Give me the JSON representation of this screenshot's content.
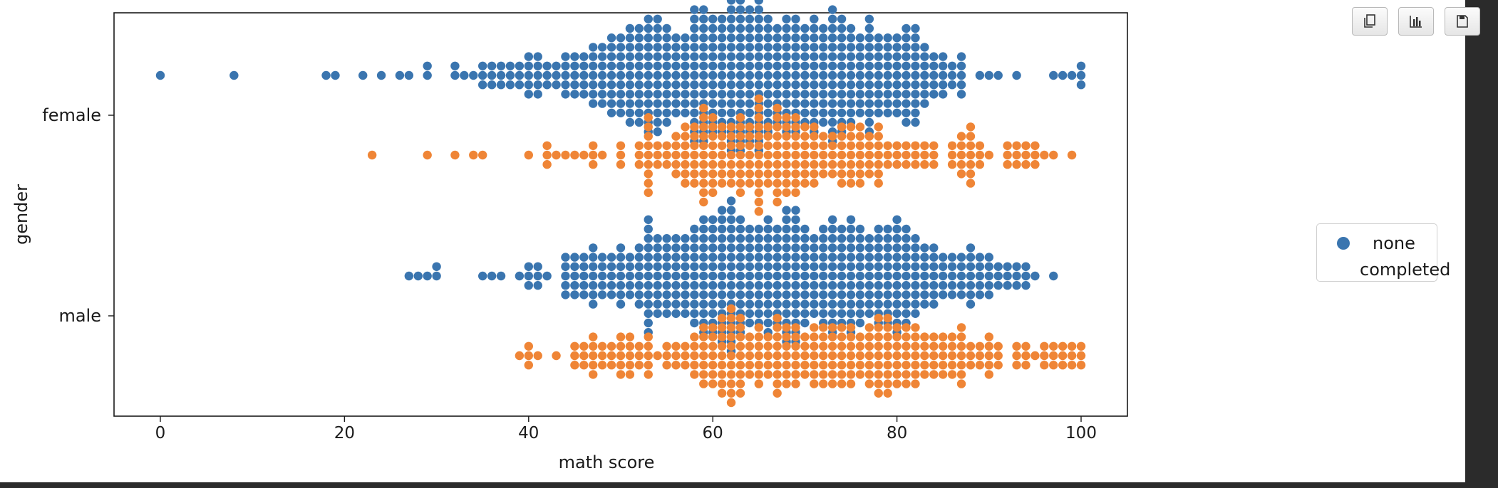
{
  "toolbar": {
    "buttons": [
      {
        "name": "copy-icon"
      },
      {
        "name": "bar-chart-icon"
      },
      {
        "name": "save-icon"
      }
    ]
  },
  "chart_data": {
    "type": "scatter",
    "subtype": "swarm",
    "xlabel": "math score",
    "ylabel": "gender",
    "xlim": [
      -5,
      105
    ],
    "xticks": [
      0,
      20,
      40,
      60,
      80,
      100
    ],
    "categories": [
      "female",
      "male"
    ],
    "grid": false,
    "legend": {
      "placement": "right",
      "entries": [
        "none",
        "completed"
      ]
    },
    "series": [
      {
        "name": "none",
        "color": "#3a75af",
        "data": {
          "female": [
            [
              0,
              1
            ],
            [
              8,
              1
            ],
            [
              18,
              1
            ],
            [
              19,
              1
            ],
            [
              22,
              1
            ],
            [
              24,
              1
            ],
            [
              26,
              1
            ],
            [
              27,
              1
            ],
            [
              29,
              2
            ],
            [
              32,
              2
            ],
            [
              33,
              1
            ],
            [
              34,
              1
            ],
            [
              35,
              3
            ],
            [
              36,
              3
            ],
            [
              37,
              3
            ],
            [
              38,
              3
            ],
            [
              39,
              3
            ],
            [
              40,
              5
            ],
            [
              41,
              5
            ],
            [
              42,
              3
            ],
            [
              43,
              3
            ],
            [
              44,
              5
            ],
            [
              45,
              5
            ],
            [
              46,
              5
            ],
            [
              47,
              7
            ],
            [
              48,
              7
            ],
            [
              49,
              9
            ],
            [
              50,
              9
            ],
            [
              51,
              11
            ],
            [
              52,
              11
            ],
            [
              53,
              13
            ],
            [
              54,
              13
            ],
            [
              55,
              11
            ],
            [
              56,
              9
            ],
            [
              57,
              9
            ],
            [
              58,
              15
            ],
            [
              59,
              15
            ],
            [
              60,
              13
            ],
            [
              61,
              13
            ],
            [
              62,
              17
            ],
            [
              63,
              17
            ],
            [
              64,
              15
            ],
            [
              65,
              17
            ],
            [
              66,
              13
            ],
            [
              67,
              11
            ],
            [
              68,
              13
            ],
            [
              69,
              13
            ],
            [
              70,
              11
            ],
            [
              71,
              13
            ],
            [
              72,
              11
            ],
            [
              73,
              15
            ],
            [
              74,
              13
            ],
            [
              75,
              11
            ],
            [
              76,
              9
            ],
            [
              77,
              13
            ],
            [
              78,
              9
            ],
            [
              79,
              9
            ],
            [
              80,
              9
            ],
            [
              81,
              11
            ],
            [
              82,
              11
            ],
            [
              83,
              7
            ],
            [
              84,
              5
            ],
            [
              85,
              5
            ],
            [
              86,
              3
            ],
            [
              87,
              5
            ],
            [
              89,
              1
            ],
            [
              90,
              1
            ],
            [
              91,
              1
            ],
            [
              93,
              1
            ],
            [
              97,
              1
            ],
            [
              98,
              1
            ],
            [
              99,
              1
            ],
            [
              100,
              3
            ]
          ],
          "male": [
            [
              27,
              1
            ],
            [
              28,
              1
            ],
            [
              29,
              1
            ],
            [
              30,
              2
            ],
            [
              35,
              1
            ],
            [
              36,
              1
            ],
            [
              37,
              1
            ],
            [
              39,
              1
            ],
            [
              40,
              3
            ],
            [
              41,
              3
            ],
            [
              42,
              1
            ],
            [
              44,
              5
            ],
            [
              45,
              5
            ],
            [
              46,
              5
            ],
            [
              47,
              7
            ],
            [
              48,
              5
            ],
            [
              49,
              5
            ],
            [
              50,
              7
            ],
            [
              51,
              5
            ],
            [
              52,
              7
            ],
            [
              53,
              13
            ],
            [
              54,
              9
            ],
            [
              55,
              9
            ],
            [
              56,
              9
            ],
            [
              57,
              9
            ],
            [
              58,
              11
            ],
            [
              59,
              13
            ],
            [
              60,
              13
            ],
            [
              61,
              15
            ],
            [
              62,
              17
            ],
            [
              63,
              13
            ],
            [
              64,
              11
            ],
            [
              65,
              11
            ],
            [
              66,
              13
            ],
            [
              67,
              11
            ],
            [
              68,
              15
            ],
            [
              69,
              15
            ],
            [
              70,
              11
            ],
            [
              71,
              9
            ],
            [
              72,
              11
            ],
            [
              73,
              13
            ],
            [
              74,
              11
            ],
            [
              75,
              13
            ],
            [
              76,
              11
            ],
            [
              77,
              9
            ],
            [
              78,
              11
            ],
            [
              79,
              11
            ],
            [
              80,
              13
            ],
            [
              81,
              11
            ],
            [
              82,
              9
            ],
            [
              83,
              7
            ],
            [
              84,
              7
            ],
            [
              85,
              5
            ],
            [
              86,
              5
            ],
            [
              87,
              5
            ],
            [
              88,
              7
            ],
            [
              89,
              5
            ],
            [
              90,
              5
            ],
            [
              91,
              3
            ],
            [
              92,
              3
            ],
            [
              93,
              3
            ],
            [
              94,
              3
            ],
            [
              95,
              1
            ],
            [
              97,
              1
            ]
          ]
        }
      },
      {
        "name": "completed",
        "color": "#ef8536",
        "data": {
          "female": [
            [
              23,
              1
            ],
            [
              29,
              1
            ],
            [
              32,
              1
            ],
            [
              34,
              1
            ],
            [
              35,
              1
            ],
            [
              40,
              1
            ],
            [
              42,
              3
            ],
            [
              43,
              1
            ],
            [
              44,
              1
            ],
            [
              45,
              1
            ],
            [
              46,
              1
            ],
            [
              47,
              3
            ],
            [
              48,
              1
            ],
            [
              50,
              3
            ],
            [
              52,
              3
            ],
            [
              53,
              9
            ],
            [
              54,
              3
            ],
            [
              55,
              3
            ],
            [
              56,
              5
            ],
            [
              57,
              7
            ],
            [
              58,
              7
            ],
            [
              59,
              11
            ],
            [
              60,
              9
            ],
            [
              61,
              7
            ],
            [
              62,
              7
            ],
            [
              63,
              9
            ],
            [
              64,
              7
            ],
            [
              65,
              13
            ],
            [
              66,
              7
            ],
            [
              67,
              11
            ],
            [
              68,
              9
            ],
            [
              69,
              9
            ],
            [
              70,
              7
            ],
            [
              71,
              7
            ],
            [
              72,
              5
            ],
            [
              73,
              5
            ],
            [
              74,
              7
            ],
            [
              75,
              7
            ],
            [
              76,
              7
            ],
            [
              77,
              5
            ],
            [
              78,
              7
            ],
            [
              79,
              3
            ],
            [
              80,
              3
            ],
            [
              81,
              3
            ],
            [
              82,
              3
            ],
            [
              83,
              3
            ],
            [
              84,
              3
            ],
            [
              86,
              3
            ],
            [
              87,
              5
            ],
            [
              88,
              7
            ],
            [
              89,
              3
            ],
            [
              90,
              1
            ],
            [
              92,
              3
            ],
            [
              93,
              3
            ],
            [
              94,
              3
            ],
            [
              95,
              3
            ],
            [
              96,
              1
            ],
            [
              97,
              1
            ],
            [
              99,
              1
            ]
          ],
          "male": [
            [
              39,
              1
            ],
            [
              40,
              3
            ],
            [
              41,
              1
            ],
            [
              43,
              1
            ],
            [
              45,
              3
            ],
            [
              46,
              3
            ],
            [
              47,
              5
            ],
            [
              48,
              3
            ],
            [
              49,
              3
            ],
            [
              50,
              5
            ],
            [
              51,
              5
            ],
            [
              52,
              3
            ],
            [
              53,
              5
            ],
            [
              54,
              1
            ],
            [
              55,
              3
            ],
            [
              56,
              3
            ],
            [
              57,
              3
            ],
            [
              58,
              5
            ],
            [
              59,
              7
            ],
            [
              60,
              7
            ],
            [
              61,
              9
            ],
            [
              62,
              11
            ],
            [
              63,
              9
            ],
            [
              64,
              5
            ],
            [
              65,
              7
            ],
            [
              66,
              5
            ],
            [
              67,
              9
            ],
            [
              68,
              7
            ],
            [
              69,
              7
            ],
            [
              70,
              5
            ],
            [
              71,
              7
            ],
            [
              72,
              7
            ],
            [
              73,
              7
            ],
            [
              74,
              7
            ],
            [
              75,
              7
            ],
            [
              76,
              5
            ],
            [
              77,
              7
            ],
            [
              78,
              9
            ],
            [
              79,
              9
            ],
            [
              80,
              7
            ],
            [
              81,
              7
            ],
            [
              82,
              7
            ],
            [
              83,
              5
            ],
            [
              84,
              5
            ],
            [
              85,
              5
            ],
            [
              86,
              5
            ],
            [
              87,
              7
            ],
            [
              88,
              3
            ],
            [
              89,
              3
            ],
            [
              90,
              5
            ],
            [
              91,
              3
            ],
            [
              93,
              3
            ],
            [
              94,
              3
            ],
            [
              95,
              1
            ],
            [
              96,
              3
            ],
            [
              97,
              3
            ],
            [
              98,
              3
            ],
            [
              99,
              3
            ],
            [
              100,
              3
            ]
          ]
        }
      }
    ]
  }
}
